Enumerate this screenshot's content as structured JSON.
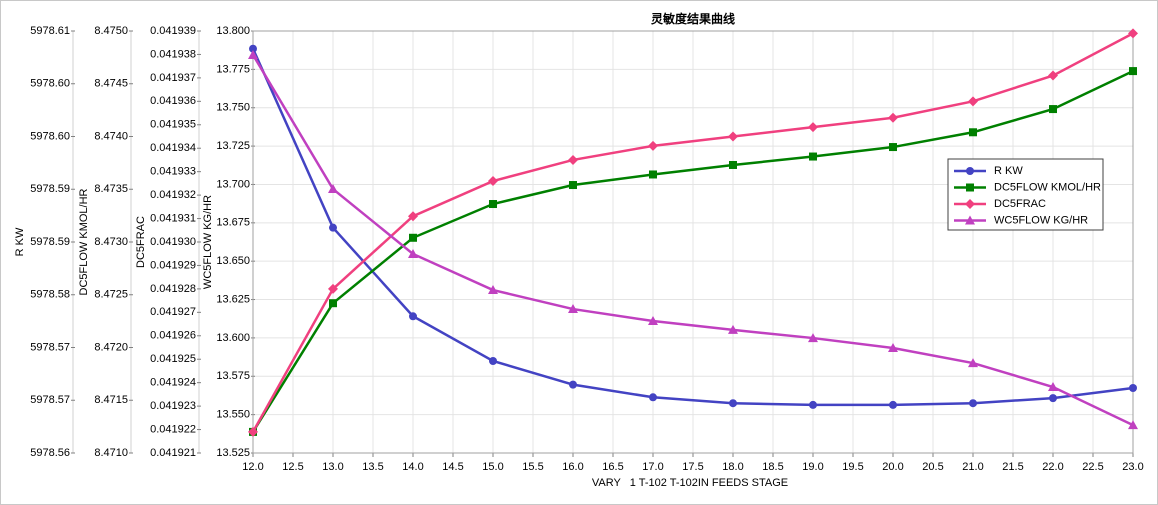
{
  "chart_data": {
    "type": "line",
    "title": "灵敏度结果曲线",
    "xlabel": "VARY   1 T-102 T-102IN FEEDS STAGE",
    "x": [
      12,
      13,
      14,
      15,
      16,
      17,
      18,
      19,
      20,
      21,
      22,
      23
    ],
    "xlim": [
      12,
      23
    ],
    "xticks": [
      {
        "value": 12,
        "label": "12.0"
      },
      12.5,
      {
        "value": 13,
        "label": "13.0"
      },
      13.5,
      {
        "value": 14,
        "label": "14.0"
      },
      14.5,
      {
        "value": 15,
        "label": "15.0"
      },
      15.5,
      {
        "value": 16,
        "label": "16.0"
      },
      16.5,
      {
        "value": 17,
        "label": "17.0"
      },
      17.5,
      {
        "value": 18,
        "label": "18.0"
      },
      18.5,
      {
        "value": 19,
        "label": "19.0"
      },
      19.5,
      {
        "value": 20,
        "label": "20.0"
      },
      20.5,
      {
        "value": 21,
        "label": "21.0"
      },
      21.5,
      {
        "value": 22,
        "label": "22.0"
      },
      22.5,
      {
        "value": 23,
        "label": "23.0"
      }
    ],
    "ylabel": "R KW",
    "ylim": [
      5978.56,
      5978.61
    ],
    "yticks": [
      {
        "value": 5978.56,
        "label": "5978.56"
      },
      {
        "value": 5978.56625,
        "label": "5978.57"
      },
      {
        "value": 5978.5725,
        "label": "5978.57"
      },
      {
        "value": 5978.57875,
        "label": "5978.58"
      },
      {
        "value": 5978.585,
        "label": "5978.59"
      },
      {
        "value": 5978.59125,
        "label": "5978.59"
      },
      {
        "value": 5978.5975,
        "label": "5978.60"
      },
      {
        "value": 5978.60375,
        "label": "5978.60"
      },
      {
        "value": 5978.61,
        "label": "5978.61"
      }
    ],
    "y2label": "DC5FLOW KMOL/HR",
    "y2lim": [
      8.471,
      8.475
    ],
    "y2ticks": [
      {
        "value": 8.471,
        "label": "8.4710"
      },
      8.4715,
      {
        "value": 8.472,
        "label": "8.4720"
      },
      8.4725,
      {
        "value": 8.473,
        "label": "8.4730"
      },
      8.4735,
      {
        "value": 8.474,
        "label": "8.4740"
      },
      8.4745,
      {
        "value": 8.475,
        "label": "8.4750"
      }
    ],
    "y3label": "DC5FRAC",
    "y3lim": [
      0.041921,
      0.041939
    ],
    "y3ticks": [
      0.041921,
      0.041922,
      0.041923,
      0.041924,
      0.041925,
      0.041926,
      0.041927,
      0.041928,
      0.041929,
      {
        "value": 0.04193,
        "label": "0.041930"
      },
      0.041931,
      0.041932,
      0.041933,
      0.041934,
      0.041935,
      0.041936,
      0.041937,
      0.041938,
      0.041939
    ],
    "y4label": "WC5FLOW KG/HR",
    "y4lim": [
      13.525,
      13.8
    ],
    "y4ticks": [
      13.525,
      {
        "value": 13.55,
        "label": "13.550"
      },
      13.575,
      {
        "value": 13.6,
        "label": "13.600"
      },
      13.625,
      {
        "value": 13.65,
        "label": "13.650"
      },
      13.675,
      {
        "value": 13.7,
        "label": "13.700"
      },
      13.725,
      {
        "value": 13.75,
        "label": "13.750"
      },
      13.775,
      {
        "value": 13.8,
        "label": "13.800"
      }
    ],
    "grid": true,
    "series": [
      {
        "name": "R KW",
        "color": "#4343c3",
        "marker": "circle",
        "axis": "y",
        "values": [
          5978.6079,
          5978.5867,
          5978.5762,
          5978.5709,
          5978.5681,
          5978.5666,
          5978.5659,
          5978.5657,
          5978.5657,
          5978.5659,
          5978.5665,
          5978.5677
        ]
      },
      {
        "name": "DC5FLOW KMOL/HR",
        "color": "#008000",
        "marker": "square",
        "axis": "y2",
        "values": [
          8.4712,
          8.47242,
          8.47304,
          8.47336,
          8.47354,
          8.47364,
          8.47373,
          8.47381,
          8.4739,
          8.47404,
          8.47426,
          8.47462
        ]
      },
      {
        "name": "DC5FRAC",
        "color": "#f0407f",
        "marker": "diamond",
        "axis": "y3",
        "values": [
          0.0419219,
          0.041928,
          0.0419311,
          0.0419326,
          0.0419335,
          0.0419341,
          0.0419345,
          0.0419349,
          0.0419353,
          0.041936,
          0.0419371,
          0.0419389
        ]
      },
      {
        "name": "WC5FLOW KG/HR",
        "color": "#c040c0",
        "marker": "triangle",
        "axis": "y4",
        "values": [
          13.7844,
          13.697,
          13.6547,
          13.6312,
          13.6188,
          13.611,
          13.6052,
          13.5999,
          13.5934,
          13.5836,
          13.568,
          13.5432
        ]
      }
    ]
  }
}
